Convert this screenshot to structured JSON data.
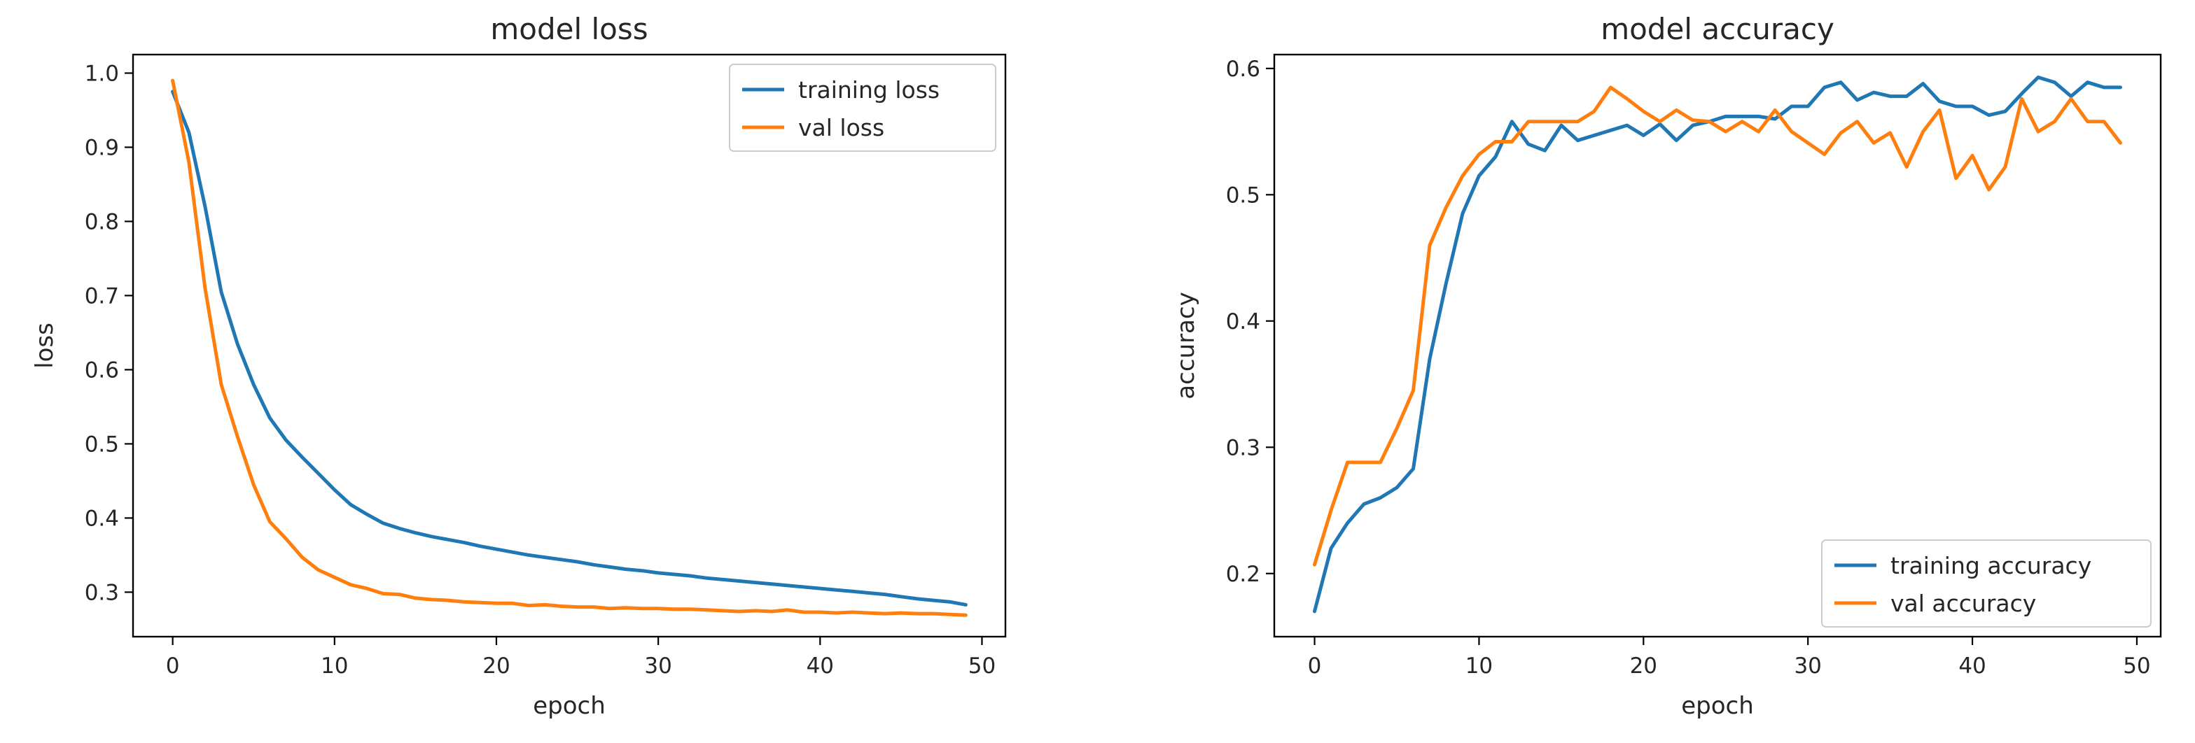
{
  "colors": {
    "series1": "#1f77b4",
    "series2": "#ff7f0e"
  },
  "chart_data": [
    {
      "type": "line",
      "title": "model loss",
      "xlabel": "epoch",
      "ylabel": "loss",
      "xlim": [
        -2.45,
        51.45
      ],
      "ylim": [
        0.24,
        1.025
      ],
      "xticks": [
        0,
        10,
        20,
        30,
        40,
        50
      ],
      "xtick_labels": [
        "0",
        "10",
        "20",
        "30",
        "40",
        "50"
      ],
      "yticks": [
        0.3,
        0.4,
        0.5,
        0.6,
        0.7,
        0.8,
        0.9,
        1.0
      ],
      "ytick_labels": [
        "0.3",
        "0.4",
        "0.5",
        "0.6",
        "0.7",
        "0.8",
        "0.9",
        "1.0"
      ],
      "legend_loc": "upper right",
      "x": [
        0,
        1,
        2,
        3,
        4,
        5,
        6,
        7,
        8,
        9,
        10,
        11,
        12,
        13,
        14,
        15,
        16,
        17,
        18,
        19,
        20,
        21,
        22,
        23,
        24,
        25,
        26,
        27,
        28,
        29,
        30,
        31,
        32,
        33,
        34,
        35,
        36,
        37,
        38,
        39,
        40,
        41,
        42,
        43,
        44,
        45,
        46,
        47,
        48,
        49
      ],
      "series": [
        {
          "name": "training loss",
          "color": "#1f77b4",
          "values": [
            0.975,
            0.92,
            0.82,
            0.705,
            0.635,
            0.58,
            0.535,
            0.505,
            0.482,
            0.46,
            0.438,
            0.418,
            0.405,
            0.393,
            0.386,
            0.38,
            0.375,
            0.371,
            0.367,
            0.362,
            0.358,
            0.354,
            0.35,
            0.347,
            0.344,
            0.341,
            0.337,
            0.334,
            0.331,
            0.329,
            0.326,
            0.324,
            0.322,
            0.319,
            0.317,
            0.315,
            0.313,
            0.311,
            0.309,
            0.307,
            0.305,
            0.303,
            0.301,
            0.299,
            0.297,
            0.294,
            0.291,
            0.289,
            0.287,
            0.283
          ]
        },
        {
          "name": "val loss",
          "color": "#ff7f0e",
          "values": [
            0.99,
            0.88,
            0.71,
            0.58,
            0.51,
            0.445,
            0.395,
            0.372,
            0.347,
            0.33,
            0.32,
            0.31,
            0.305,
            0.298,
            0.297,
            0.292,
            0.29,
            0.289,
            0.287,
            0.286,
            0.285,
            0.285,
            0.282,
            0.283,
            0.281,
            0.28,
            0.28,
            0.278,
            0.279,
            0.278,
            0.278,
            0.277,
            0.277,
            0.276,
            0.275,
            0.274,
            0.275,
            0.274,
            0.276,
            0.273,
            0.273,
            0.272,
            0.273,
            0.272,
            0.271,
            0.272,
            0.271,
            0.271,
            0.27,
            0.269
          ]
        }
      ]
    },
    {
      "type": "line",
      "title": "model accuracy",
      "xlabel": "epoch",
      "ylabel": "accuracy",
      "xlim": [
        -2.45,
        51.45
      ],
      "ylim": [
        0.15,
        0.611
      ],
      "xticks": [
        0,
        10,
        20,
        30,
        40,
        50
      ],
      "xtick_labels": [
        "0",
        "10",
        "20",
        "30",
        "40",
        "50"
      ],
      "yticks": [
        0.2,
        0.3,
        0.4,
        0.5,
        0.6
      ],
      "ytick_labels": [
        "0.2",
        "0.3",
        "0.4",
        "0.5",
        "0.6"
      ],
      "legend_loc": "lower right",
      "x": [
        0,
        1,
        2,
        3,
        4,
        5,
        6,
        7,
        8,
        9,
        10,
        11,
        12,
        13,
        14,
        15,
        16,
        17,
        18,
        19,
        20,
        21,
        22,
        23,
        24,
        25,
        26,
        27,
        28,
        29,
        30,
        31,
        32,
        33,
        34,
        35,
        36,
        37,
        38,
        39,
        40,
        41,
        42,
        43,
        44,
        45,
        46,
        47,
        48,
        49
      ],
      "series": [
        {
          "name": "training accuracy",
          "color": "#1f77b4",
          "values": [
            0.17,
            0.22,
            0.24,
            0.255,
            0.26,
            0.268,
            0.283,
            0.37,
            0.43,
            0.485,
            0.515,
            0.53,
            0.558,
            0.54,
            0.535,
            0.555,
            0.543,
            0.547,
            0.551,
            0.555,
            0.547,
            0.556,
            0.543,
            0.555,
            0.558,
            0.562,
            0.562,
            0.562,
            0.56,
            0.57,
            0.57,
            0.585,
            0.589,
            0.575,
            0.581,
            0.578,
            0.578,
            0.588,
            0.574,
            0.57,
            0.57,
            0.563,
            0.566,
            0.58,
            0.593,
            0.589,
            0.578,
            0.589,
            0.585,
            0.585
          ]
        },
        {
          "name": "val accuracy",
          "color": "#ff7f0e",
          "values": [
            0.207,
            0.25,
            0.288,
            0.288,
            0.288,
            0.315,
            0.345,
            0.46,
            0.49,
            0.515,
            0.532,
            0.542,
            0.542,
            0.558,
            0.558,
            0.558,
            0.558,
            0.566,
            0.585,
            0.576,
            0.566,
            0.558,
            0.567,
            0.559,
            0.558,
            0.55,
            0.558,
            0.55,
            0.567,
            0.55,
            0.541,
            0.532,
            0.549,
            0.558,
            0.541,
            0.549,
            0.522,
            0.55,
            0.567,
            0.513,
            0.531,
            0.504,
            0.522,
            0.576,
            0.55,
            0.558,
            0.576,
            0.558,
            0.558,
            0.541
          ]
        }
      ]
    }
  ]
}
